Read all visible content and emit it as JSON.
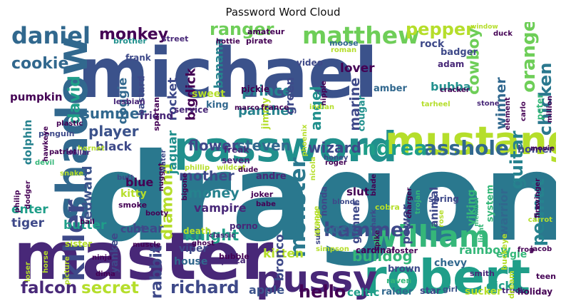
{
  "chart_data": {
    "type": "wordcloud",
    "title": "Password Word Cloud",
    "words": [
      {
        "text": "dragon",
        "color": "#2a788e"
      },
      {
        "text": "michael",
        "color": "#3b528b"
      },
      {
        "text": "master",
        "color": "#482878"
      },
      {
        "text": "robert",
        "color": "#1f9e89"
      },
      {
        "text": "password",
        "color": "#21908d"
      },
      {
        "text": "mustang",
        "color": "#b5de2b"
      },
      {
        "text": "shadow",
        "color": "#31688e"
      },
      {
        "text": "pussy",
        "color": "#482878"
      },
      {
        "text": "william",
        "color": "#35b779"
      },
      {
        "text": "matthew",
        "color": "#6ece58"
      },
      {
        "text": "daniel",
        "color": "#31688e"
      },
      {
        "text": "killer",
        "color": "#3e4989"
      },
      {
        "text": "asshole",
        "color": "#31688e"
      },
      {
        "text": "andrea",
        "color": "#1f9e89"
      },
      {
        "text": "monster",
        "color": "#2a788e"
      },
      {
        "text": "hammer",
        "color": "#3e4989"
      },
      {
        "text": "cookie",
        "color": "#31688e"
      },
      {
        "text": "monkey",
        "color": "#440154"
      },
      {
        "text": "ranger",
        "color": "#6ece58"
      },
      {
        "text": "pepper",
        "color": "#b5de2b"
      },
      {
        "text": "cowboy",
        "color": "#6ece58"
      },
      {
        "text": "orange",
        "color": "#6ece58"
      },
      {
        "text": "chicken",
        "color": "#2a788e"
      },
      {
        "text": "guitar",
        "color": "#26828e"
      },
      {
        "text": "peanut",
        "color": "#26828e"
      },
      {
        "text": "hello",
        "color": "#440154"
      },
      {
        "text": "richard",
        "color": "#3e4989"
      },
      {
        "text": "falcon",
        "color": "#482878"
      },
      {
        "text": "secret",
        "color": "#b5de2b"
      },
      {
        "text": "rabbit",
        "color": "#3e4989"
      },
      {
        "text": "knight",
        "color": "#1f9e89"
      },
      {
        "text": "diamond",
        "color": "#b5de2b"
      },
      {
        "text": "summer",
        "color": "#31688e"
      },
      {
        "text": "player",
        "color": "#3b528b"
      },
      {
        "text": "david",
        "color": "#1f9e89"
      },
      {
        "text": "prince",
        "color": "#26828e"
      },
      {
        "text": "flower",
        "color": "#3e4989"
      },
      {
        "text": "steven",
        "color": "#31688e"
      },
      {
        "text": "wizard",
        "color": "#3e4989"
      },
      {
        "text": "angel",
        "color": "#21908d"
      },
      {
        "text": "marine",
        "color": "#3e4989"
      },
      {
        "text": "winner",
        "color": "#31688e"
      },
      {
        "text": "bubba",
        "color": "#21908d"
      },
      {
        "text": "mother",
        "color": "#3e4989"
      },
      {
        "text": "money",
        "color": "#26828e"
      },
      {
        "text": "edward",
        "color": "#3b528b"
      },
      {
        "text": "black",
        "color": "#3e4989"
      },
      {
        "text": "enter",
        "color": "#1f9e89"
      },
      {
        "text": "tiger",
        "color": "#3e4989"
      },
      {
        "text": "butter",
        "color": "#1f9e89"
      },
      {
        "text": "bigdick",
        "color": "#440154"
      },
      {
        "text": "rocket",
        "color": "#3e4989"
      },
      {
        "text": "jaguar",
        "color": "#21908d"
      },
      {
        "text": "doggie",
        "color": "#31688e"
      },
      {
        "text": "banana",
        "color": "#26828e"
      },
      {
        "text": "panther",
        "color": "#26828e"
      },
      {
        "text": "green",
        "color": "#3e4989"
      },
      {
        "text": "lover",
        "color": "#440154"
      },
      {
        "text": "cock",
        "color": "#31688e"
      },
      {
        "text": "bulldog",
        "color": "#35b779"
      },
      {
        "text": "kitten",
        "color": "#b5de2b"
      },
      {
        "text": "bronco",
        "color": "#3e4989"
      },
      {
        "text": "apple",
        "color": "#3b528b"
      },
      {
        "text": "celtic",
        "color": "#1f9e89"
      },
      {
        "text": "bear",
        "color": "#3e4989"
      },
      {
        "text": "rainbow",
        "color": "#35b779"
      },
      {
        "text": "dick",
        "color": "#1f9e89"
      },
      {
        "text": "warrior",
        "color": "#31688e"
      },
      {
        "text": "vampire",
        "color": "#482878"
      },
      {
        "text": "blue",
        "color": "#440154"
      },
      {
        "text": "pumpkin",
        "color": "#440154"
      },
      {
        "text": "dolphin",
        "color": "#26828e"
      },
      {
        "text": "gunner",
        "color": "#3e4989"
      },
      {
        "text": "power",
        "color": "#3e4989"
      },
      {
        "text": "animal",
        "color": "#3e4989"
      },
      {
        "text": "viking",
        "color": "#35b779"
      },
      {
        "text": "system",
        "color": "#35b779"
      },
      {
        "text": "slut",
        "color": "#440154"
      },
      {
        "text": "eagle",
        "color": "#35b779"
      },
      {
        "text": "homer",
        "color": "#3e4989"
      },
      {
        "text": "chevy",
        "color": "#31688e"
      },
      {
        "text": "house",
        "color": "#31688e"
      },
      {
        "text": "viper",
        "color": "#3e4989"
      },
      {
        "text": "cunt",
        "color": "#3e4989"
      },
      {
        "text": "rock",
        "color": "#3e4989"
      },
      {
        "text": "sweet",
        "color": "#b5de2b"
      },
      {
        "text": "yankee",
        "color": "#3e4989"
      },
      {
        "text": "friend",
        "color": "#482878"
      },
      {
        "text": "kitty",
        "color": "#b5de2b"
      },
      {
        "text": "andre",
        "color": "#482878"
      },
      {
        "text": "badger",
        "color": "#3e4989"
      },
      {
        "text": "cougar",
        "color": "#21908d"
      },
      {
        "text": "jimmy",
        "color": "#b5de2b"
      },
      {
        "text": "amber",
        "color": "#31688e"
      },
      {
        "text": "adam",
        "color": "#482878"
      },
      {
        "text": "bastard",
        "color": "#3e4989"
      },
      {
        "text": "sucker",
        "color": "#b5de2b"
      },
      {
        "text": "brown",
        "color": "#3e4989"
      },
      {
        "text": "raider",
        "color": "#31688e"
      },
      {
        "text": "star",
        "color": "#3e4989"
      },
      {
        "text": "honda",
        "color": "#3e4989"
      },
      {
        "text": "king",
        "color": "#31688e"
      },
      {
        "text": "service",
        "color": "#482878"
      },
      {
        "text": "seven",
        "color": "#482878"
      },
      {
        "text": "freak",
        "color": "#482878"
      },
      {
        "text": "porno",
        "color": "#482878"
      },
      {
        "text": "spring",
        "color": "#3e4989"
      },
      {
        "text": "frank",
        "color": "#3e4989"
      },
      {
        "text": "video",
        "color": "#3e4989"
      },
      {
        "text": "pickle",
        "color": "#440154"
      },
      {
        "text": "cardinal",
        "color": "#440154"
      },
      {
        "text": "pizza",
        "color": "#482878"
      },
      {
        "text": "holiday",
        "color": "#440154"
      },
      {
        "text": "truck",
        "color": "#482878"
      },
      {
        "text": "girl",
        "color": "#3b528b"
      },
      {
        "text": "smith",
        "color": "#482878"
      },
      {
        "text": "raven",
        "color": "#35b779"
      },
      {
        "text": "teen",
        "color": "#440154"
      },
      {
        "text": "street",
        "color": "#482878"
      },
      {
        "text": "amateur",
        "color": "#440154"
      },
      {
        "text": "hottie",
        "color": "#440154"
      },
      {
        "text": "pirate",
        "color": "#440154"
      },
      {
        "text": "brother",
        "color": "#21908d"
      },
      {
        "text": "moose",
        "color": "#31688e"
      },
      {
        "text": "penguin",
        "color": "#3e4989"
      },
      {
        "text": "spartan",
        "color": "#440154"
      },
      {
        "text": "lesbian",
        "color": "#482878"
      },
      {
        "text": "plastic",
        "color": "#440154"
      },
      {
        "text": "hawkeye",
        "color": "#440154"
      },
      {
        "text": "patriot",
        "color": "#440154"
      },
      {
        "text": "hornet",
        "color": "#b5de2b"
      },
      {
        "text": "dollar",
        "color": "#482878"
      },
      {
        "text": "devil",
        "color": "#35b779"
      },
      {
        "text": "snake",
        "color": "#b5de2b"
      },
      {
        "text": "butt",
        "color": "#3e4989"
      },
      {
        "text": "dodger",
        "color": "#440154"
      },
      {
        "text": "philip",
        "color": "#440154"
      },
      {
        "text": "smoke",
        "color": "#440154"
      },
      {
        "text": "booty",
        "color": "#440154"
      },
      {
        "text": "death",
        "color": "#b5de2b"
      },
      {
        "text": "classic",
        "color": "#482878"
      },
      {
        "text": "ghost",
        "color": "#440154"
      },
      {
        "text": "muscle",
        "color": "#440154"
      },
      {
        "text": "sister",
        "color": "#b5de2b"
      },
      {
        "text": "horse",
        "color": "#b5de2b"
      },
      {
        "text": "picture",
        "color": "#b5de2b"
      },
      {
        "text": "loser",
        "color": "#b5de2b"
      },
      {
        "text": "ninja",
        "color": "#440154"
      },
      {
        "text": "dima",
        "color": "#440154"
      },
      {
        "text": "bubble",
        "color": "#440154"
      },
      {
        "text": "nugget",
        "color": "#440154"
      },
      {
        "text": "water",
        "color": "#3e4989"
      },
      {
        "text": "phillip",
        "color": "#b5de2b"
      },
      {
        "text": "wildcat",
        "color": "#b5de2b"
      },
      {
        "text": "bigone",
        "color": "#440154"
      },
      {
        "text": "joker",
        "color": "#440154"
      },
      {
        "text": "babe",
        "color": "#440154"
      },
      {
        "text": "marco",
        "color": "#440154"
      },
      {
        "text": "france",
        "color": "#440154"
      },
      {
        "text": "indian",
        "color": "#b5de2b"
      },
      {
        "text": "nipple",
        "color": "#440154"
      },
      {
        "text": "roman",
        "color": "#b5de2b"
      },
      {
        "text": "nicola",
        "color": "#b5de2b"
      },
      {
        "text": "phoenix",
        "color": "#b5de2b"
      },
      {
        "text": "roger",
        "color": "#440154"
      },
      {
        "text": "honey",
        "color": "#3e4989"
      },
      {
        "text": "blonde",
        "color": "#3e4989"
      },
      {
        "text": "charger",
        "color": "#440154"
      },
      {
        "text": "trojan",
        "color": "#35b779"
      },
      {
        "text": "blade",
        "color": "#440154"
      },
      {
        "text": "shark",
        "color": "#3e4989"
      },
      {
        "text": "spike",
        "color": "#440154"
      },
      {
        "text": "cobra",
        "color": "#b5de2b"
      },
      {
        "text": "orange",
        "color": "#b5de2b"
      },
      {
        "text": "simpson",
        "color": "#b5de2b"
      },
      {
        "text": "foster",
        "color": "#440154"
      },
      {
        "text": "suck",
        "color": "#3e4989"
      },
      {
        "text": "lounge",
        "color": "#b5de2b"
      },
      {
        "text": "rose",
        "color": "#b5de2b"
      },
      {
        "text": "light",
        "color": "#35b779"
      },
      {
        "text": "member",
        "color": "#35b779"
      },
      {
        "text": "cracker",
        "color": "#440154"
      },
      {
        "text": "element",
        "color": "#440154"
      },
      {
        "text": "carlo",
        "color": "#440154"
      },
      {
        "text": "stone",
        "color": "#482878"
      },
      {
        "text": "tarheel",
        "color": "#b5de2b"
      },
      {
        "text": "window",
        "color": "#b5de2b"
      },
      {
        "text": "duck",
        "color": "#440154"
      },
      {
        "text": "peter",
        "color": "#35b779"
      },
      {
        "text": "million",
        "color": "#440154"
      },
      {
        "text": "movie",
        "color": "#440154"
      },
      {
        "text": "swinger",
        "color": "#440154"
      },
      {
        "text": "fire",
        "color": "#440154"
      },
      {
        "text": "carrot",
        "color": "#b5de2b"
      },
      {
        "text": "jacob",
        "color": "#440154"
      },
      {
        "text": "frog",
        "color": "#440154"
      },
      {
        "text": "buckeye",
        "color": "#b5de2b"
      },
      {
        "text": "dream",
        "color": "#b5de2b"
      },
      {
        "text": "ball",
        "color": "#440154"
      },
      {
        "text": "dude",
        "color": "#440154"
      }
    ]
  }
}
